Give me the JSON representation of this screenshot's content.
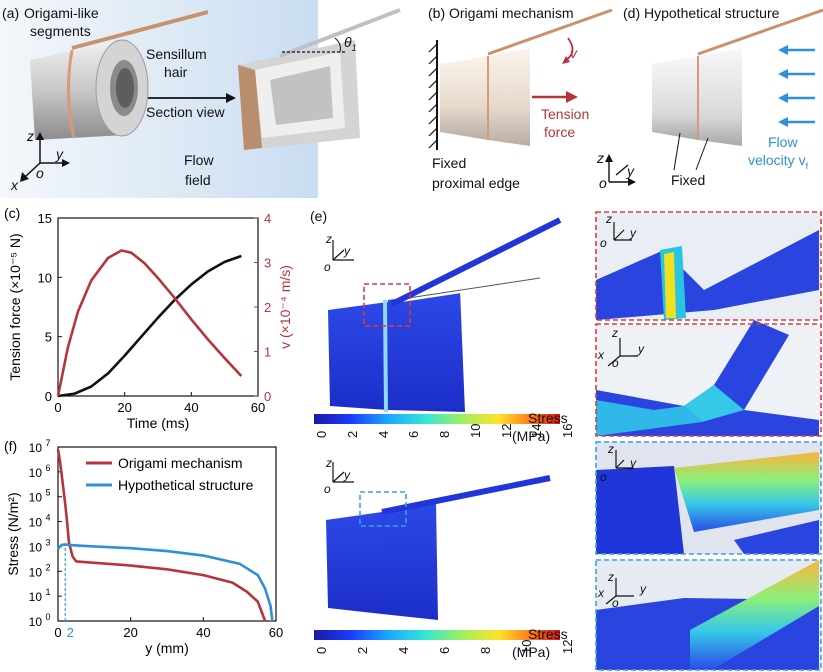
{
  "panel_a": {
    "label": "(a)",
    "segments_label_1": "Origami-like",
    "segments_label_2": "segments",
    "hair_label_1": "Sensillum",
    "hair_label_2": "hair",
    "section_view": "Section view",
    "flow_1": "Flow",
    "flow_2": "field",
    "theta": "θ",
    "theta_sub": "1",
    "axis_z": "z",
    "axis_y": "y",
    "axis_x": "x",
    "axis_o": "o"
  },
  "panel_b": {
    "label": "(b) Origami mechanism",
    "v": "v",
    "tension_1": "Tension",
    "tension_2": "force",
    "fixed_1": "Fixed",
    "fixed_2": "proximal edge"
  },
  "panel_d": {
    "label": "(d) Hypothetical structure",
    "flow_1": "Flow",
    "flow_2": "velocity v",
    "flow_sub": "f",
    "fixed": "Fixed",
    "axis_z": "z",
    "axis_y": "y",
    "axis_o": "o"
  },
  "panel_e": {
    "label": "(e)",
    "stress_label": "Stress",
    "unit": "(MPa)",
    "colorbar_top_ticks": [
      "0",
      "2",
      "4",
      "6",
      "8",
      "10",
      "12",
      "14",
      "16"
    ],
    "colorbar_bottom_ticks": [
      "0",
      "2",
      "4",
      "6",
      "8",
      "10",
      "12"
    ],
    "axis_z": "z",
    "axis_y": "y",
    "axis_o": "o",
    "axis_x": "x"
  },
  "colors": {
    "red": "#b8343c",
    "blue": "#2f8fd8",
    "black": "#111111",
    "dash_red": "#e03a3a",
    "dash_blue": "#3aa0e0"
  },
  "chart_data": [
    {
      "panel": "(c)",
      "type": "line",
      "xlabel": "Time (ms)",
      "ylabel_left": "Tension force (×10⁻⁵ N)",
      "ylabel_right": "v (×10⁻⁴ m/s)",
      "xlim": [
        0,
        60
      ],
      "xticks": [
        "0",
        "20",
        "40",
        "60"
      ],
      "ylim_left": [
        0,
        15
      ],
      "yticks_left": [
        "0",
        "5",
        "10",
        "15"
      ],
      "ylim_right": [
        0,
        4
      ],
      "yticks_right": [
        "0",
        "1",
        "2",
        "3",
        "4"
      ],
      "series": [
        {
          "axis": "left",
          "color": "#111111",
          "x": [
            0,
            5,
            10,
            15,
            20,
            25,
            30,
            35,
            40,
            45,
            50,
            55
          ],
          "y": [
            0,
            0.2,
            0.8,
            1.9,
            3.4,
            5.0,
            6.6,
            8.1,
            9.4,
            10.5,
            11.3,
            11.8
          ]
        },
        {
          "axis": "right",
          "color": "#b8343c",
          "x": [
            0,
            3,
            6,
            10,
            15,
            19,
            22,
            26,
            30,
            35,
            40,
            45,
            50,
            55
          ],
          "y": [
            0,
            1.1,
            1.9,
            2.6,
            3.1,
            3.27,
            3.22,
            2.98,
            2.65,
            2.2,
            1.72,
            1.27,
            0.85,
            0.45
          ]
        }
      ]
    },
    {
      "panel": "(f)",
      "type": "line",
      "xlabel": "y (mm)",
      "ylabel": "Stress (N/m²)",
      "yscale": "log",
      "xlim": [
        0,
        60
      ],
      "xticks": [
        "0",
        "20",
        "40",
        "60"
      ],
      "extra_xtick": "2",
      "ylim": [
        1,
        10000000
      ],
      "ytick_exponents": [
        "0",
        "1",
        "2",
        "3",
        "4",
        "5",
        "6",
        "7"
      ],
      "legend_position": "top-right",
      "series": [
        {
          "name": "Origami mechanism",
          "color": "#b8343c",
          "x": [
            0,
            0.5,
            1,
            1.5,
            2,
            2.5,
            3,
            4,
            5,
            10,
            20,
            30,
            40,
            48,
            52,
            55,
            57
          ],
          "y": [
            8000000,
            3000000,
            800000,
            200000,
            50000,
            10000,
            1500,
            400,
            250,
            220,
            170,
            120,
            70,
            35,
            15,
            6,
            1
          ]
        },
        {
          "name": "Hypothetical structure",
          "color": "#2f8fd8",
          "x": [
            0,
            1,
            2,
            3,
            5,
            10,
            20,
            30,
            40,
            50,
            55,
            57,
            58.5,
            59
          ],
          "y": [
            800,
            1150,
            1200,
            1150,
            1100,
            1000,
            850,
            650,
            430,
            200,
            70,
            20,
            4,
            1
          ]
        }
      ]
    }
  ]
}
